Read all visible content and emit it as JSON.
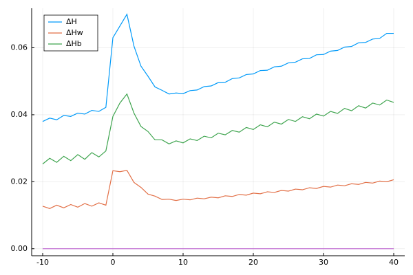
{
  "chart_data": {
    "type": "line",
    "x": [
      -10,
      -9,
      -8,
      -7,
      -6,
      -5,
      -4,
      -3,
      -2,
      -1,
      0,
      1,
      2,
      3,
      4,
      5,
      6,
      7,
      8,
      9,
      10,
      11,
      12,
      13,
      14,
      15,
      16,
      17,
      18,
      19,
      20,
      21,
      22,
      23,
      24,
      25,
      26,
      27,
      28,
      29,
      30,
      31,
      32,
      33,
      34,
      35,
      36,
      37,
      38,
      39,
      40
    ],
    "series": [
      {
        "name": "ΔH",
        "color": "#009af9",
        "values": [
          0.038,
          0.039,
          0.0385,
          0.0398,
          0.0395,
          0.0405,
          0.0402,
          0.0413,
          0.041,
          0.0422,
          0.063,
          0.0665,
          0.07,
          0.0605,
          0.0545,
          0.0515,
          0.0483,
          0.0473,
          0.0462,
          0.0465,
          0.0463,
          0.0472,
          0.0474,
          0.0484,
          0.0486,
          0.0496,
          0.0497,
          0.0508,
          0.051,
          0.052,
          0.0522,
          0.0532,
          0.0533,
          0.0543,
          0.0545,
          0.0555,
          0.0557,
          0.0567,
          0.0568,
          0.0579,
          0.058,
          0.059,
          0.0592,
          0.0602,
          0.0604,
          0.0615,
          0.0616,
          0.0626,
          0.0628,
          0.0643,
          0.0643
        ]
      },
      {
        "name": "ΔHw",
        "color": "#e26f46",
        "values": [
          0.0127,
          0.012,
          0.013,
          0.0122,
          0.0132,
          0.0124,
          0.0135,
          0.0127,
          0.0137,
          0.013,
          0.0233,
          0.023,
          0.0234,
          0.0198,
          0.0183,
          0.0163,
          0.0157,
          0.0147,
          0.0148,
          0.0144,
          0.0148,
          0.0146,
          0.0151,
          0.0149,
          0.0154,
          0.0152,
          0.0158,
          0.0156,
          0.0162,
          0.016,
          0.0166,
          0.0164,
          0.017,
          0.0168,
          0.0174,
          0.0172,
          0.0178,
          0.0176,
          0.0182,
          0.018,
          0.0186,
          0.0184,
          0.019,
          0.0188,
          0.0194,
          0.0192,
          0.0198,
          0.0196,
          0.0202,
          0.02,
          0.0206
        ]
      },
      {
        "name": "ΔHb",
        "color": "#3ea44e",
        "values": [
          0.0253,
          0.027,
          0.0258,
          0.0276,
          0.0263,
          0.0281,
          0.0267,
          0.0287,
          0.0274,
          0.0292,
          0.0395,
          0.0435,
          0.0462,
          0.0405,
          0.0365,
          0.035,
          0.0325,
          0.0325,
          0.0313,
          0.0322,
          0.0316,
          0.0328,
          0.0323,
          0.0336,
          0.0331,
          0.0345,
          0.034,
          0.0353,
          0.0348,
          0.0362,
          0.0356,
          0.037,
          0.0364,
          0.0378,
          0.0372,
          0.0386,
          0.038,
          0.0394,
          0.0388,
          0.0402,
          0.0396,
          0.041,
          0.0404,
          0.0419,
          0.0412,
          0.0427,
          0.042,
          0.0435,
          0.0429,
          0.0444,
          0.0437
        ]
      },
      {
        "color": "#c271d2",
        "values": [
          0,
          0,
          0,
          0,
          0,
          0,
          0,
          0,
          0,
          0,
          0,
          0,
          0,
          0,
          0,
          0,
          0,
          0,
          0,
          0,
          0,
          0,
          0,
          0,
          0,
          0,
          0,
          0,
          0,
          0,
          0,
          0,
          0,
          0,
          0,
          0,
          0,
          0,
          0,
          0,
          0,
          0,
          0,
          0,
          0,
          0,
          0,
          0,
          0,
          0,
          0
        ]
      }
    ],
    "xlim": [
      -11.57,
      41.57
    ],
    "xticks": [
      -10,
      0,
      10,
      20,
      30,
      40
    ],
    "ylim": [
      -0.0021,
      0.0718
    ],
    "yticks": [
      {
        "value": 0,
        "label": "0.00"
      },
      {
        "value": 0.02,
        "label": "0.02"
      },
      {
        "value": 0.04,
        "label": "0.04"
      },
      {
        "value": 0.06,
        "label": "0.06"
      }
    ],
    "grid": true,
    "legend": "top-left"
  }
}
